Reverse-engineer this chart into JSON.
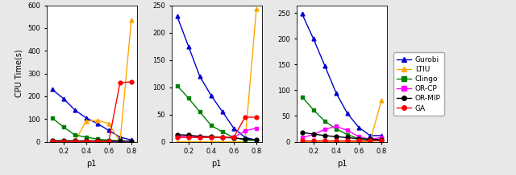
{
  "x": [
    0.1,
    0.2,
    0.3,
    0.4,
    0.5,
    0.6,
    0.7,
    0.8
  ],
  "subplot1": {
    "Gurobi": [
      230,
      190,
      140,
      105,
      80,
      50,
      20,
      8
    ],
    "LTIU": [
      0,
      0,
      0,
      90,
      95,
      80,
      0,
      535
    ],
    "Clingo": [
      105,
      65,
      30,
      20,
      12,
      7,
      4,
      2
    ],
    "OR-CP": [
      2,
      2,
      2,
      2,
      2,
      2,
      2,
      2
    ],
    "OR-MIP": [
      5,
      5,
      4,
      4,
      4,
      3,
      3,
      3
    ],
    "GA": [
      1,
      1,
      1,
      1,
      1,
      1,
      260,
      263
    ]
  },
  "subplot2": {
    "Gurobi": [
      230,
      175,
      120,
      85,
      55,
      25,
      8,
      3
    ],
    "LTIU": [
      0,
      0,
      0,
      0,
      0,
      0,
      0,
      243
    ],
    "Clingo": [
      103,
      80,
      55,
      30,
      18,
      8,
      3,
      2
    ],
    "OR-CP": [
      10,
      10,
      8,
      8,
      8,
      8,
      20,
      25
    ],
    "OR-MIP": [
      13,
      12,
      10,
      9,
      8,
      7,
      5,
      4
    ],
    "GA": [
      8,
      8,
      8,
      8,
      8,
      8,
      45,
      45
    ]
  },
  "subplot3": {
    "Gurobi": [
      248,
      200,
      148,
      95,
      55,
      28,
      12,
      12
    ],
    "LTIU": [
      0,
      0,
      0,
      0,
      0,
      0,
      0,
      80
    ],
    "Clingo": [
      87,
      62,
      40,
      25,
      14,
      6,
      3,
      2
    ],
    "OR-CP": [
      8,
      14,
      24,
      30,
      22,
      10,
      5,
      8
    ],
    "OR-MIP": [
      18,
      15,
      12,
      10,
      8,
      6,
      5,
      4
    ],
    "GA": [
      2,
      2,
      2,
      2,
      2,
      2,
      2,
      2
    ]
  },
  "colors": {
    "Gurobi": "#0000CD",
    "LTIU": "#FFA500",
    "Clingo": "#008000",
    "OR-CP": "#FF00FF",
    "OR-MIP": "#000000",
    "GA": "#FF0000"
  },
  "markers": {
    "Gurobi": "^",
    "LTIU": "^",
    "Clingo": "s",
    "OR-CP": "s",
    "OR-MIP": "o",
    "GA": "o"
  },
  "ylim1": [
    0,
    600
  ],
  "ylim2": [
    0,
    250
  ],
  "ylim3": [
    0,
    265
  ],
  "xlabel": "p1",
  "ylabel": "CPU Time(s)",
  "legend_labels": [
    "Gurobi",
    "LTIU",
    "Clingo",
    "OR-CP",
    "OR-MIP",
    "GA"
  ],
  "bg_color": "#E8E8E8",
  "plot_bg": "#FFFFFF"
}
